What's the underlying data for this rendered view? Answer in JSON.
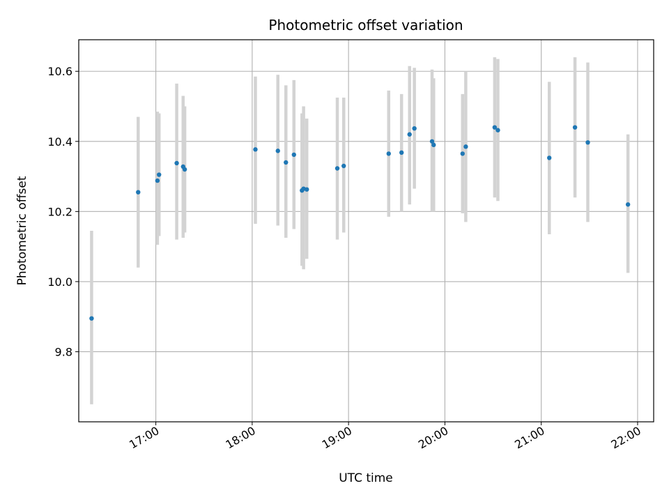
{
  "chart_data": {
    "type": "scatter",
    "title": "Photometric offset variation",
    "xlabel": "UTC time",
    "ylabel": "Photometric offset",
    "x_unit": "UTC time (HH:MM)",
    "xlim": [
      "16:12",
      "22:10"
    ],
    "ylim": [
      9.6,
      10.69
    ],
    "x_ticks": [
      "17:00",
      "18:00",
      "19:00",
      "20:00",
      "21:00",
      "22:00"
    ],
    "y_ticks": [
      9.8,
      10.0,
      10.2,
      10.4,
      10.6
    ],
    "y_tick_labels": [
      "9.8",
      "10.0",
      "10.2",
      "10.4",
      "10.6"
    ],
    "grid": true,
    "point_color": "#1f77b4",
    "errorbar_color": "#d3d3d3",
    "points": [
      {
        "x": "16:20",
        "y": 9.895,
        "y_low": 9.65,
        "y_high": 10.145
      },
      {
        "x": "16:49",
        "y": 10.255,
        "y_low": 10.04,
        "y_high": 10.47
      },
      {
        "x": "17:01",
        "y": 10.288,
        "y_low": 10.105,
        "y_high": 10.485
      },
      {
        "x": "17:02",
        "y": 10.305,
        "y_low": 10.13,
        "y_high": 10.48
      },
      {
        "x": "17:13",
        "y": 10.338,
        "y_low": 10.12,
        "y_high": 10.565
      },
      {
        "x": "17:17",
        "y": 10.328,
        "y_low": 10.125,
        "y_high": 10.53
      },
      {
        "x": "17:18",
        "y": 10.32,
        "y_low": 10.14,
        "y_high": 10.5
      },
      {
        "x": "18:02",
        "y": 10.377,
        "y_low": 10.165,
        "y_high": 10.585
      },
      {
        "x": "18:16",
        "y": 10.373,
        "y_low": 10.16,
        "y_high": 10.59
      },
      {
        "x": "18:21",
        "y": 10.34,
        "y_low": 10.125,
        "y_high": 10.56
      },
      {
        "x": "18:26",
        "y": 10.362,
        "y_low": 10.15,
        "y_high": 10.575
      },
      {
        "x": "18:31",
        "y": 10.26,
        "y_low": 10.045,
        "y_high": 10.48
      },
      {
        "x": "18:32",
        "y": 10.265,
        "y_low": 10.035,
        "y_high": 10.5
      },
      {
        "x": "18:34",
        "y": 10.263,
        "y_low": 10.065,
        "y_high": 10.465
      },
      {
        "x": "18:53",
        "y": 10.323,
        "y_low": 10.12,
        "y_high": 10.525
      },
      {
        "x": "18:57",
        "y": 10.33,
        "y_low": 10.14,
        "y_high": 10.525
      },
      {
        "x": "19:25",
        "y": 10.365,
        "y_low": 10.185,
        "y_high": 10.545
      },
      {
        "x": "19:33",
        "y": 10.368,
        "y_low": 10.2,
        "y_high": 10.535
      },
      {
        "x": "19:38",
        "y": 10.42,
        "y_low": 10.22,
        "y_high": 10.615
      },
      {
        "x": "19:41",
        "y": 10.437,
        "y_low": 10.265,
        "y_high": 10.61
      },
      {
        "x": "19:52",
        "y": 10.4,
        "y_low": 10.2,
        "y_high": 10.605
      },
      {
        "x": "19:53",
        "y": 10.39,
        "y_low": 10.2,
        "y_high": 10.58
      },
      {
        "x": "20:11",
        "y": 10.365,
        "y_low": 10.195,
        "y_high": 10.535
      },
      {
        "x": "20:13",
        "y": 10.385,
        "y_low": 10.17,
        "y_high": 10.6
      },
      {
        "x": "20:31",
        "y": 10.44,
        "y_low": 10.24,
        "y_high": 10.64
      },
      {
        "x": "20:33",
        "y": 10.432,
        "y_low": 10.23,
        "y_high": 10.635
      },
      {
        "x": "21:05",
        "y": 10.353,
        "y_low": 10.135,
        "y_high": 10.57
      },
      {
        "x": "21:21",
        "y": 10.44,
        "y_low": 10.24,
        "y_high": 10.64
      },
      {
        "x": "21:29",
        "y": 10.397,
        "y_low": 10.17,
        "y_high": 10.625
      },
      {
        "x": "21:54",
        "y": 10.22,
        "y_low": 10.025,
        "y_high": 10.42
      }
    ]
  }
}
